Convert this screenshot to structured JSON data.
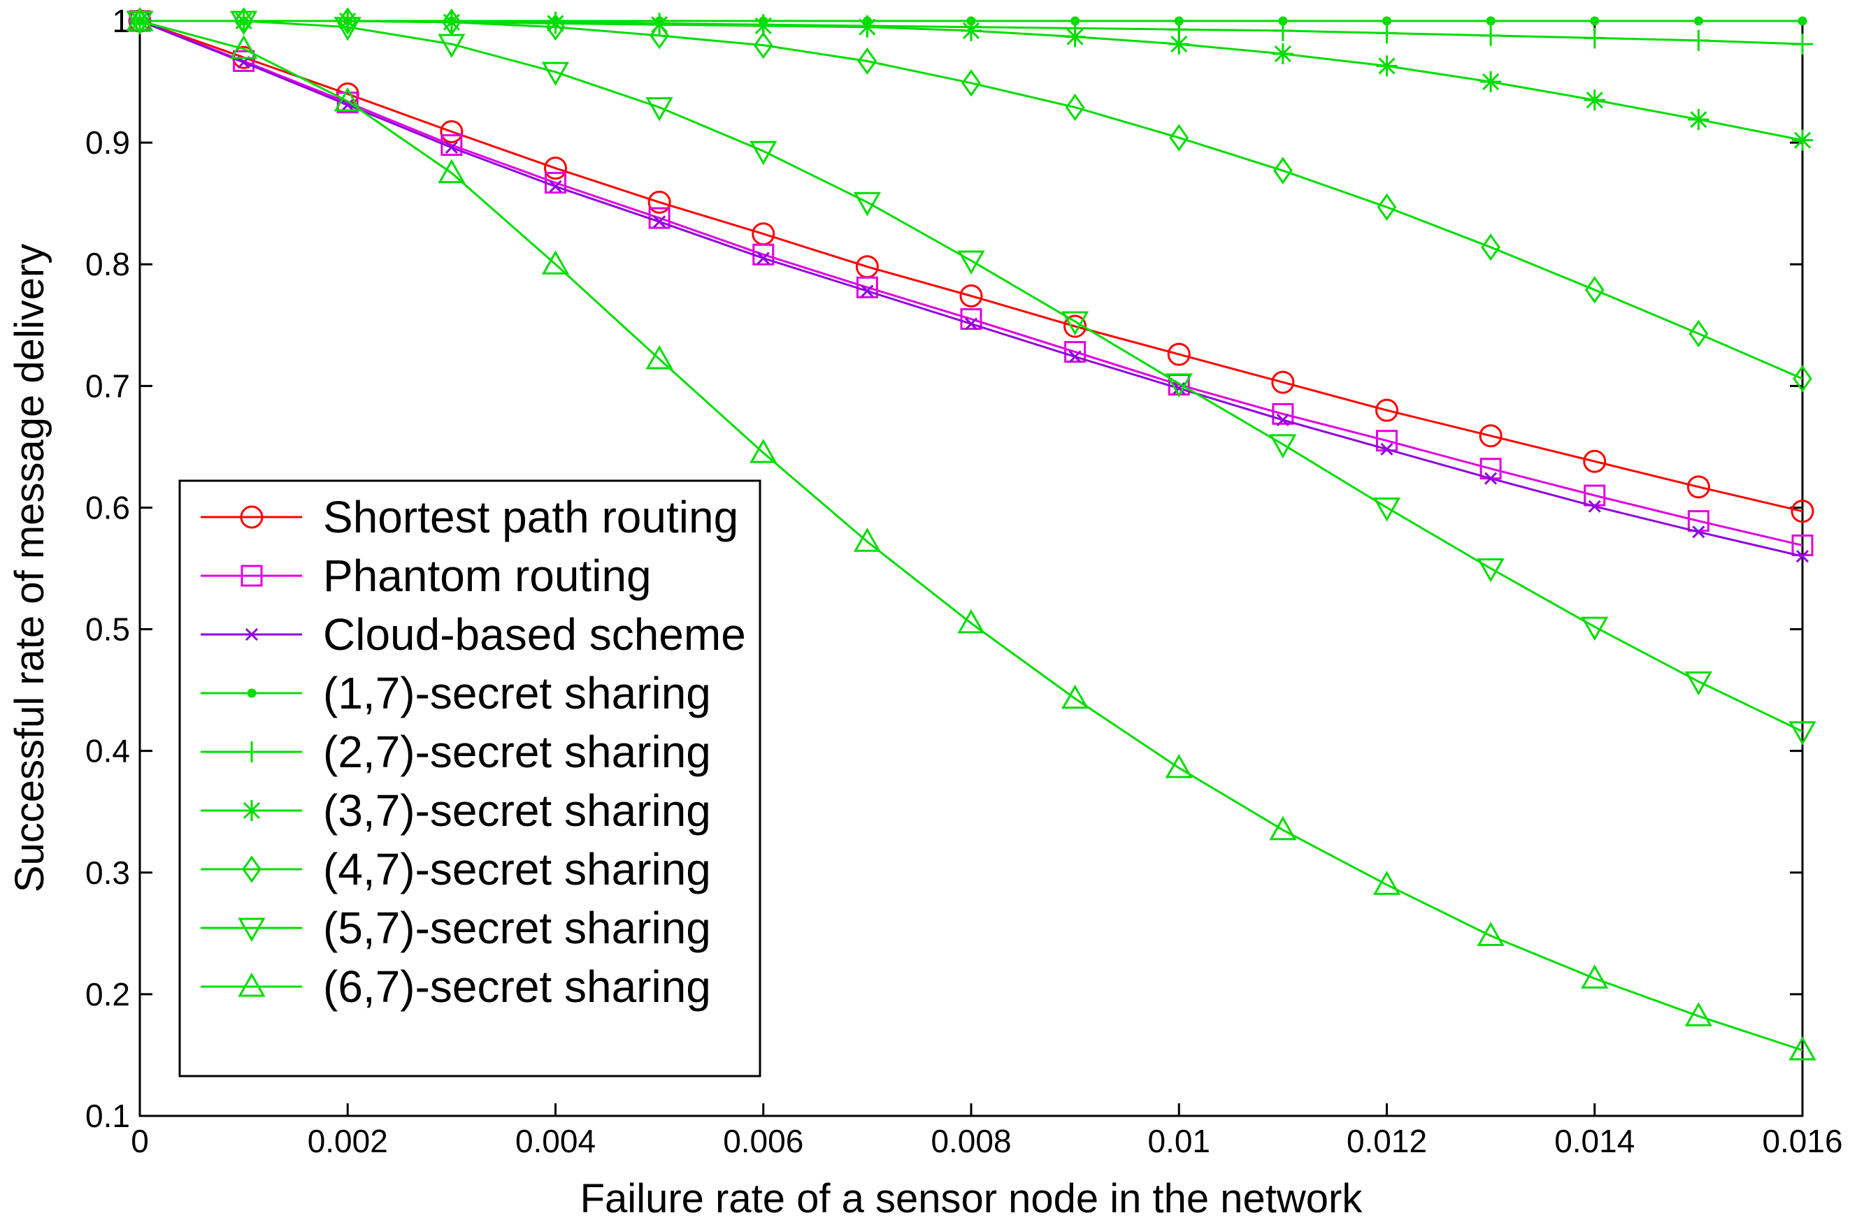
{
  "chart_data": {
    "type": "line",
    "title": "",
    "xlabel": "Failure rate of a sensor node in the network",
    "ylabel": "Successful rate of message delivery",
    "xlim": [
      0,
      0.016
    ],
    "ylim": [
      0.1,
      1.0
    ],
    "grid": false,
    "legend_position": "lower-left",
    "x_tick_labels": [
      "0",
      "0.002",
      "0.004",
      "0.006",
      "0.008",
      "0.01",
      "0.012",
      "0.014",
      "0.016"
    ],
    "x_ticks": [
      0,
      0.002,
      0.004,
      0.006,
      0.008,
      0.01,
      0.012,
      0.014,
      0.016
    ],
    "y_tick_labels": [
      "0.1",
      "0.2",
      "0.3",
      "0.4",
      "0.5",
      "0.6",
      "0.7",
      "0.8",
      "0.9",
      "1"
    ],
    "y_ticks": [
      0.1,
      0.2,
      0.3,
      0.4,
      0.5,
      0.6,
      0.7,
      0.8,
      0.9,
      1.0
    ],
    "x": [
      0,
      0.001,
      0.002,
      0.003,
      0.004,
      0.005,
      0.006,
      0.007,
      0.008,
      0.009,
      0.01,
      0.011,
      0.012,
      0.013,
      0.014,
      0.015,
      0.016
    ],
    "series": [
      {
        "name": "Shortest path routing",
        "color": "#ff0000",
        "marker": "circle",
        "values": [
          1.0,
          0.97,
          0.94,
          0.909,
          0.879,
          0.851,
          0.825,
          0.798,
          0.774,
          0.749,
          0.726,
          0.703,
          0.68,
          0.659,
          0.638,
          0.617,
          0.597
        ]
      },
      {
        "name": "Phantom routing",
        "color": "#e000e0",
        "marker": "square",
        "values": [
          1.0,
          0.967,
          0.933,
          0.898,
          0.867,
          0.838,
          0.808,
          0.781,
          0.755,
          0.728,
          0.701,
          0.677,
          0.655,
          0.632,
          0.61,
          0.589,
          0.569
        ]
      },
      {
        "name": "Cloud-based scheme",
        "color": "#9000e0",
        "marker": "x",
        "values": [
          1.0,
          0.966,
          0.931,
          0.896,
          0.864,
          0.835,
          0.805,
          0.778,
          0.751,
          0.724,
          0.698,
          0.672,
          0.648,
          0.624,
          0.601,
          0.58,
          0.56
        ]
      },
      {
        "name": "(1,7)-secret sharing",
        "color": "#00dd00",
        "marker": "dot",
        "values": [
          1.0,
          1.0,
          1.0,
          1.0,
          1.0,
          1.0,
          1.0,
          1.0,
          1.0,
          1.0,
          1.0,
          1.0,
          1.0,
          1.0,
          1.0,
          1.0,
          1.0
        ]
      },
      {
        "name": "(2,7)-secret sharing",
        "color": "#00dd00",
        "marker": "plus",
        "values": [
          1.0,
          1.0,
          1.0,
          0.999,
          0.999,
          0.998,
          0.997,
          0.996,
          0.995,
          0.994,
          0.993,
          0.992,
          0.99,
          0.988,
          0.986,
          0.984,
          0.981
        ]
      },
      {
        "name": "(3,7)-secret sharing",
        "color": "#00dd00",
        "marker": "asterisk",
        "values": [
          1.0,
          1.0,
          1.0,
          0.999,
          0.998,
          0.997,
          0.996,
          0.995,
          0.992,
          0.987,
          0.981,
          0.973,
          0.963,
          0.95,
          0.935,
          0.919,
          0.902
        ]
      },
      {
        "name": "(4,7)-secret sharing",
        "color": "#00dd00",
        "marker": "diamond",
        "values": [
          1.0,
          1.0,
          1.0,
          0.999,
          0.995,
          0.988,
          0.98,
          0.967,
          0.949,
          0.929,
          0.904,
          0.877,
          0.847,
          0.814,
          0.779,
          0.743,
          0.706
        ]
      },
      {
        "name": "(5,7)-secret sharing",
        "color": "#00dd00",
        "marker": "triangle-down",
        "values": [
          1.0,
          1.0,
          0.995,
          0.981,
          0.958,
          0.929,
          0.893,
          0.851,
          0.803,
          0.753,
          0.702,
          0.652,
          0.6,
          0.55,
          0.502,
          0.457,
          0.416
        ]
      },
      {
        "name": "(6,7)-secret sharing",
        "color": "#00dd00",
        "marker": "triangle-up",
        "values": [
          1.0,
          0.977,
          0.934,
          0.875,
          0.8,
          0.722,
          0.645,
          0.572,
          0.505,
          0.443,
          0.386,
          0.335,
          0.29,
          0.248,
          0.213,
          0.182,
          0.154
        ]
      }
    ]
  }
}
